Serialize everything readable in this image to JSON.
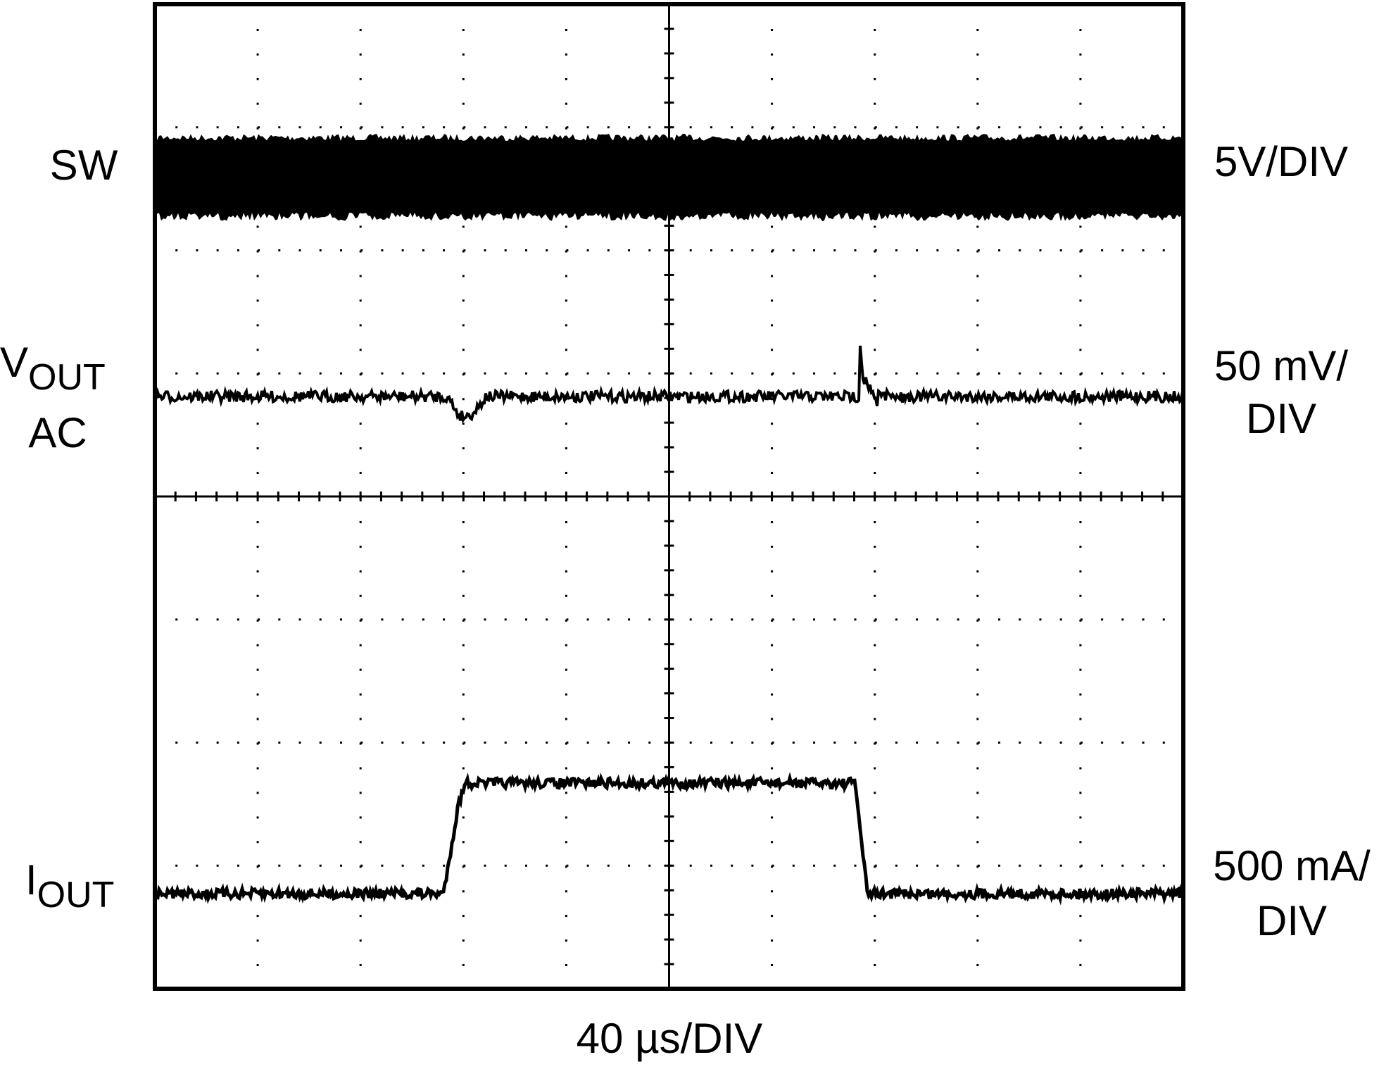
{
  "chart_data": {
    "type": "oscilloscope",
    "channels": [
      {
        "name": "SW",
        "scale": [
          "5V/DIV"
        ]
      },
      {
        "name": "V",
        "subscript": "OUT",
        "line2": "AC",
        "scale": [
          "50 mV/",
          "DIV"
        ]
      },
      {
        "name": "I",
        "subscript": "OUT",
        "scale": [
          "500 mA/",
          "DIV"
        ]
      }
    ],
    "time_scale": "40 µs/DIV"
  }
}
